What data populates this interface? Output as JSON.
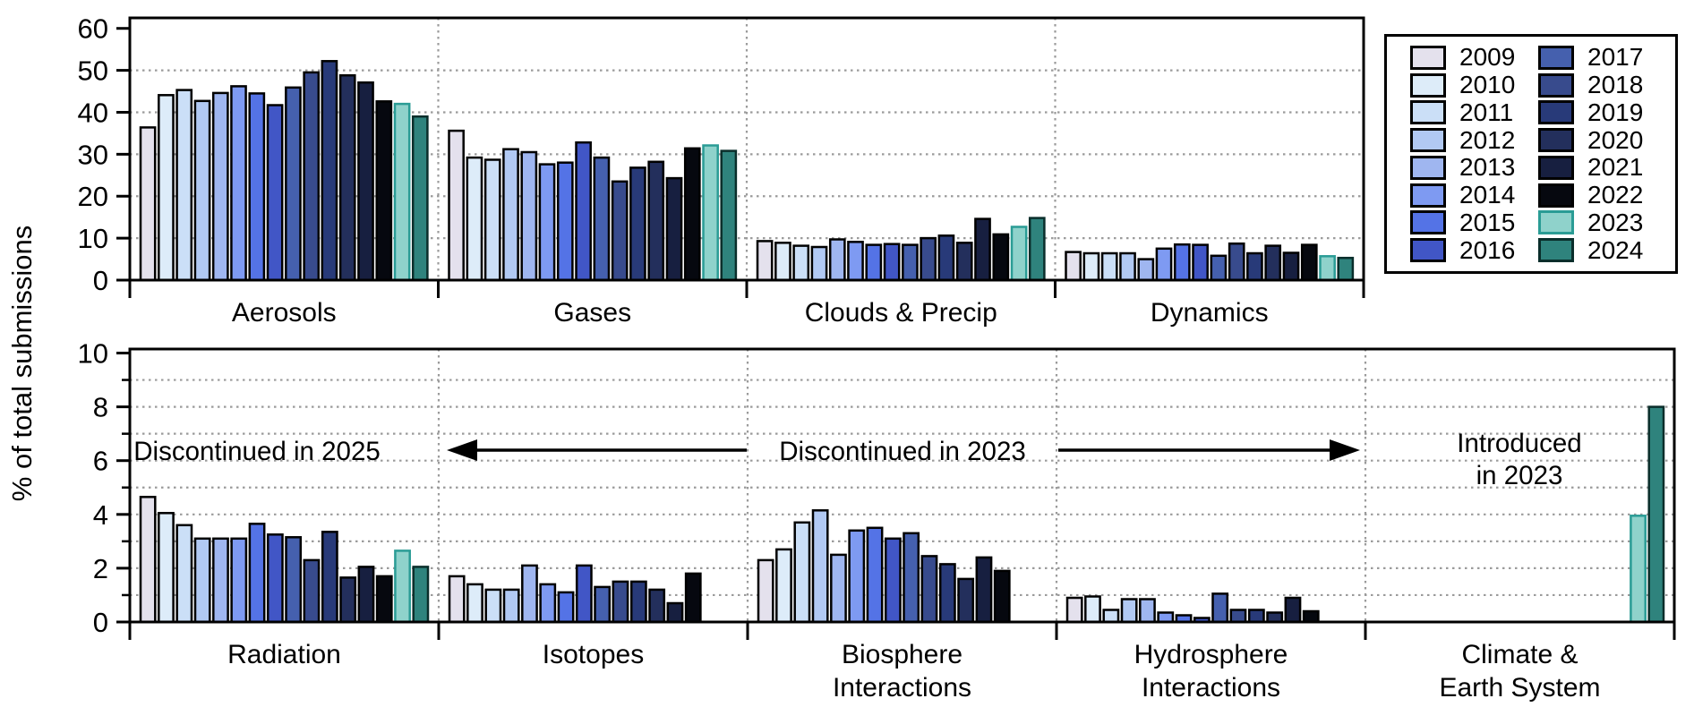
{
  "figure": {
    "background": "#ffffff"
  },
  "ylabel": "% of total submissions",
  "annotations": {
    "discontinued_2025": "Discontinued in 2025",
    "discontinued_2023": "Discontinued in 2023",
    "introduced_2023_line1": "Introduced",
    "introduced_2023_line2": "in 2023"
  },
  "chart_data": [
    {
      "type": "bar",
      "panel": "top",
      "title": "",
      "ylabel": "% of total submissions",
      "ylim": [
        0,
        62.5
      ],
      "yticks": [
        0,
        10,
        20,
        30,
        40,
        50,
        60
      ],
      "gridlines": [
        10,
        20,
        30,
        40,
        50
      ],
      "minor_ticks": [],
      "grid": "dotted",
      "legend_position": "outside-top-right",
      "categories": [
        "Aerosols",
        "Gases",
        "Clouds & Precip",
        "Dynamics"
      ],
      "series": [
        {
          "name": "2009",
          "fill": "#e4e1ed",
          "edge": "#000000",
          "values": [
            36.4,
            35.6,
            9.3,
            6.7
          ]
        },
        {
          "name": "2010",
          "fill": "#ddecf9",
          "edge": "#000000",
          "values": [
            44.1,
            29.2,
            8.9,
            6.4
          ]
        },
        {
          "name": "2011",
          "fill": "#cbdff7",
          "edge": "#000000",
          "values": [
            45.3,
            28.7,
            8.2,
            6.4
          ]
        },
        {
          "name": "2012",
          "fill": "#b1c9f3",
          "edge": "#000000",
          "values": [
            42.7,
            31.2,
            7.9,
            6.4
          ]
        },
        {
          "name": "2013",
          "fill": "#9fb6f0",
          "edge": "#000000",
          "values": [
            44.6,
            30.5,
            9.7,
            5.0
          ]
        },
        {
          "name": "2014",
          "fill": "#7e9af2",
          "edge": "#000000",
          "values": [
            46.2,
            27.6,
            9.1,
            7.5
          ]
        },
        {
          "name": "2015",
          "fill": "#5473e6",
          "edge": "#000000",
          "values": [
            44.5,
            28.0,
            8.4,
            8.5
          ]
        },
        {
          "name": "2016",
          "fill": "#4156c6",
          "edge": "#000000",
          "values": [
            41.7,
            32.8,
            8.6,
            8.4
          ]
        },
        {
          "name": "2017",
          "fill": "#4560ae",
          "edge": "#000000",
          "values": [
            45.9,
            29.2,
            8.4,
            5.8
          ]
        },
        {
          "name": "2018",
          "fill": "#384b8d",
          "edge": "#000000",
          "values": [
            49.5,
            23.5,
            10.0,
            8.7
          ]
        },
        {
          "name": "2019",
          "fill": "#283a79",
          "edge": "#000000",
          "values": [
            52.2,
            26.8,
            10.6,
            6.4
          ]
        },
        {
          "name": "2020",
          "fill": "#232f5c",
          "edge": "#000000",
          "values": [
            48.8,
            28.2,
            8.9,
            8.2
          ]
        },
        {
          "name": "2021",
          "fill": "#171f40",
          "edge": "#000000",
          "values": [
            47.1,
            24.3,
            14.6,
            6.5
          ]
        },
        {
          "name": "2022",
          "fill": "#06080f",
          "edge": "#000000",
          "values": [
            42.6,
            31.4,
            10.9,
            8.4
          ]
        },
        {
          "name": "2023",
          "fill": "#8fd2cb",
          "edge": "#2a9c95",
          "values": [
            42.0,
            32.1,
            12.7,
            5.7
          ]
        },
        {
          "name": "2024",
          "fill": "#2f837d",
          "edge": "#0a2e2b",
          "values": [
            39.0,
            30.8,
            14.8,
            5.3
          ]
        }
      ]
    },
    {
      "type": "bar",
      "panel": "bottom",
      "title": "",
      "ylabel": "% of total submissions",
      "ylim": [
        0,
        10.15
      ],
      "yticks": [
        0,
        2,
        4,
        6,
        8,
        10
      ],
      "gridlines": [
        1,
        2,
        3,
        4,
        5,
        6,
        7,
        8,
        9
      ],
      "minor_ticks": [
        1,
        3,
        5,
        7,
        9
      ],
      "grid": "dotted",
      "categories": [
        "Radiation",
        "Isotopes",
        "Biosphere\nInteractions",
        "Hydrosphere\nInteractions",
        "Climate &\nEarth System"
      ],
      "series": [
        {
          "name": "2009",
          "fill": "#e4e1ed",
          "edge": "#000000",
          "values": [
            4.65,
            1.7,
            2.3,
            0.9,
            null
          ]
        },
        {
          "name": "2010",
          "fill": "#ddecf9",
          "edge": "#000000",
          "values": [
            4.05,
            1.4,
            2.7,
            0.95,
            null
          ]
        },
        {
          "name": "2011",
          "fill": "#cbdff7",
          "edge": "#000000",
          "values": [
            3.6,
            1.2,
            3.7,
            0.45,
            null
          ]
        },
        {
          "name": "2012",
          "fill": "#b1c9f3",
          "edge": "#000000",
          "values": [
            3.1,
            1.2,
            4.15,
            0.85,
            null
          ]
        },
        {
          "name": "2013",
          "fill": "#9fb6f0",
          "edge": "#000000",
          "values": [
            3.1,
            2.1,
            2.5,
            0.85,
            null
          ]
        },
        {
          "name": "2014",
          "fill": "#7e9af2",
          "edge": "#000000",
          "values": [
            3.1,
            1.4,
            3.4,
            0.35,
            null
          ]
        },
        {
          "name": "2015",
          "fill": "#5473e6",
          "edge": "#000000",
          "values": [
            3.65,
            1.1,
            3.5,
            0.25,
            null
          ]
        },
        {
          "name": "2016",
          "fill": "#4156c6",
          "edge": "#000000",
          "values": [
            3.25,
            2.1,
            3.1,
            0.15,
            null
          ]
        },
        {
          "name": "2017",
          "fill": "#4560ae",
          "edge": "#000000",
          "values": [
            3.15,
            1.3,
            3.3,
            1.05,
            null
          ]
        },
        {
          "name": "2018",
          "fill": "#384b8d",
          "edge": "#000000",
          "values": [
            2.3,
            1.5,
            2.45,
            0.45,
            null
          ]
        },
        {
          "name": "2019",
          "fill": "#283a79",
          "edge": "#000000",
          "values": [
            3.35,
            1.5,
            2.15,
            0.45,
            null
          ]
        },
        {
          "name": "2020",
          "fill": "#232f5c",
          "edge": "#000000",
          "values": [
            1.65,
            1.2,
            1.6,
            0.35,
            null
          ]
        },
        {
          "name": "2021",
          "fill": "#171f40",
          "edge": "#000000",
          "values": [
            2.05,
            0.7,
            2.4,
            0.9,
            null
          ]
        },
        {
          "name": "2022",
          "fill": "#06080f",
          "edge": "#000000",
          "values": [
            1.7,
            1.8,
            1.9,
            0.4,
            null
          ]
        },
        {
          "name": "2023",
          "fill": "#8fd2cb",
          "edge": "#2a9c95",
          "values": [
            2.65,
            null,
            null,
            null,
            3.95
          ]
        },
        {
          "name": "2024",
          "fill": "#2f837d",
          "edge": "#0a2e2b",
          "values": [
            2.05,
            null,
            null,
            null,
            8.0
          ]
        }
      ]
    }
  ],
  "legend": {
    "years": [
      "2009",
      "2010",
      "2011",
      "2012",
      "2013",
      "2014",
      "2015",
      "2016",
      "2017",
      "2018",
      "2019",
      "2020",
      "2021",
      "2022",
      "2023",
      "2024"
    ]
  }
}
